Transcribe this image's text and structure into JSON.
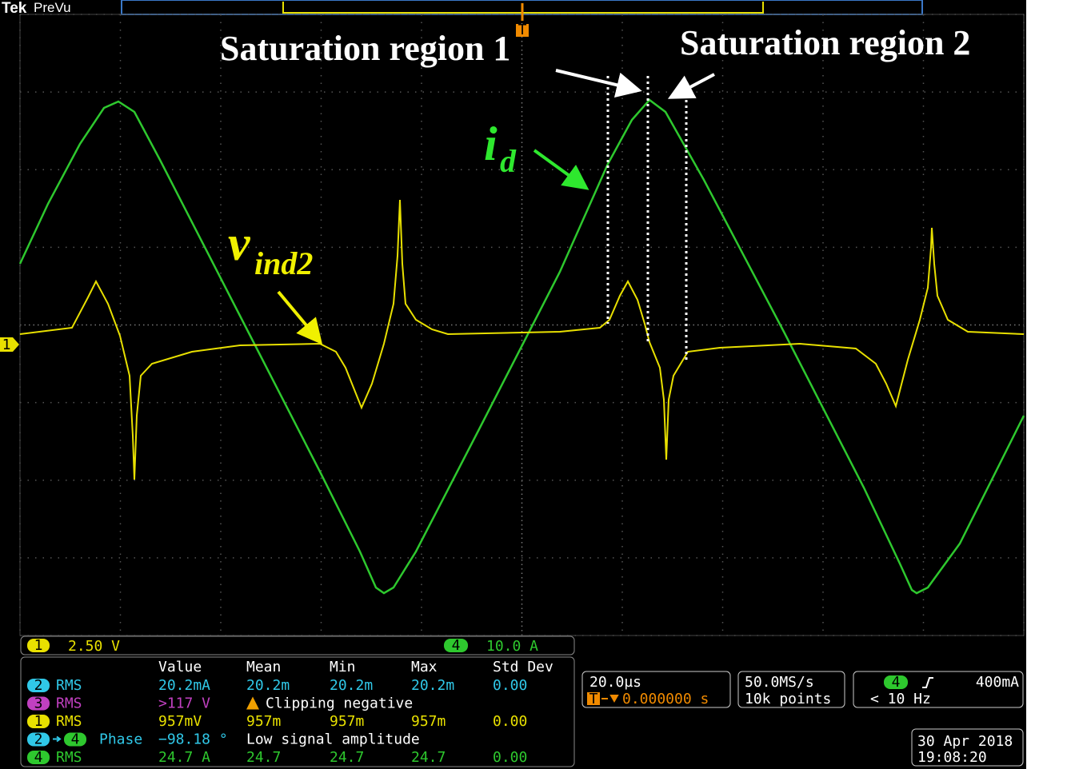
{
  "header": {
    "brand": "Tek",
    "mode": "PreVu",
    "trigger_marker": "T",
    "channel_marker": "1"
  },
  "annotations": {
    "saturation_region_1": "Saturation region 1",
    "saturation_region_2": "Saturation region 2",
    "current_symbol": "i",
    "current_subscript": "d",
    "voltage_symbol": "v",
    "voltage_subscript": "ind2"
  },
  "channel_bar": {
    "ch1_badge": "1",
    "ch1_scale": "2.50 V",
    "ch4_badge": "4",
    "ch4_scale": "10.0 A"
  },
  "measurements": {
    "columns": [
      "Value",
      "Mean",
      "Min",
      "Max",
      "Std Dev"
    ],
    "rows": [
      {
        "source": "2",
        "type": "RMS",
        "cells": [
          "20.2mA",
          "20.2m",
          "20.2m",
          "20.2m",
          "0.00"
        ]
      },
      {
        "source": "3",
        "type": "RMS",
        "cells": [
          ">117 V"
        ],
        "warning": "Clipping negative"
      },
      {
        "source": "1",
        "type": "RMS",
        "cells": [
          "957mV",
          "957m",
          "957m",
          "957m",
          "0.00"
        ]
      },
      {
        "source": "2",
        "target": "4",
        "type": "Phase",
        "cells": [
          "−98.18 °"
        ],
        "warning": "Low signal amplitude"
      },
      {
        "source": "4",
        "type": "RMS",
        "cells": [
          "24.7 A",
          "24.7",
          "24.7",
          "24.7",
          "0.00"
        ]
      }
    ]
  },
  "horizontal": {
    "scale": "20.0µs",
    "trigger_badge": "T",
    "position": "0.000000 s"
  },
  "acquisition": {
    "sample_rate": "50.0MS/s",
    "record_length": "10k points"
  },
  "trigger": {
    "source": "4",
    "level": "400mA",
    "frequency": "< 10 Hz"
  },
  "timestamp": {
    "date": "30 Apr 2018",
    "time": "19:08:20"
  }
}
